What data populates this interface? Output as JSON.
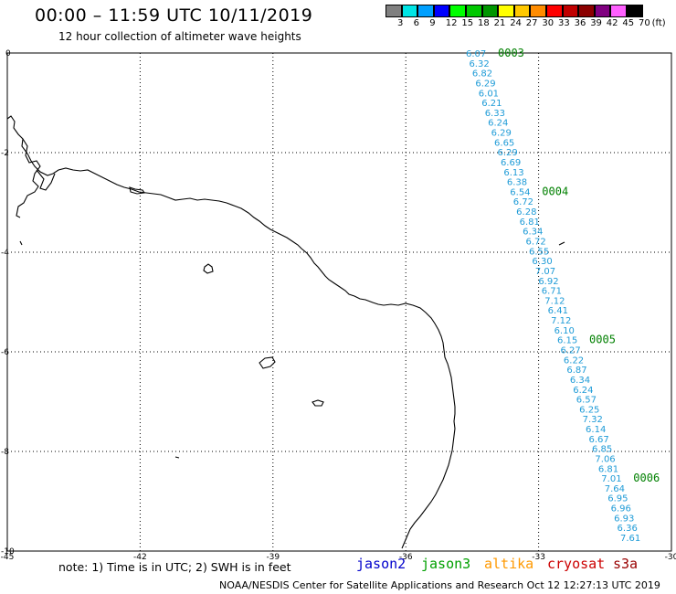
{
  "header": {
    "title": "00:00 – 11:59 UTC 10/11/2019",
    "subtitle": "12 hour collection of altimeter wave heights"
  },
  "legend": {
    "colors": [
      "#808080",
      "#00e5e5",
      "#00a0ff",
      "#0000ff",
      "#00ff00",
      "#00c800",
      "#009600",
      "#ffff00",
      "#ffc800",
      "#ff8c00",
      "#ff0000",
      "#c00000",
      "#8b0000",
      "#800080",
      "#ff60ff",
      "#000000"
    ],
    "labels": [
      "3",
      "6",
      "9",
      "12",
      "15",
      "18",
      "21",
      "24",
      "27",
      "30",
      "33",
      "36",
      "39",
      "42",
      "45",
      "70",
      "(ft)"
    ]
  },
  "map": {
    "x_ticks": [
      "-45",
      "-42",
      "-39",
      "-36",
      "-33",
      "-30"
    ],
    "y_ticks": [
      "0",
      "-2",
      "-4",
      "-6",
      "-8",
      "-10"
    ],
    "pass_labels": [
      "0003",
      "0004",
      "0005",
      "0006"
    ],
    "wave_heights": [
      "6.07",
      "6.32",
      "6.82",
      "6.29",
      "6.01",
      "6.21",
      "6.33",
      "6.24",
      "6.29",
      "6.65",
      "6.29",
      "6.69",
      "6.13",
      "6.38",
      "6.54",
      "6.72",
      "6.28",
      "6.81",
      "6.34",
      "6.72",
      "6.55",
      "6.30",
      "7.07",
      "6.92",
      "6.71",
      "7.12",
      "6.41",
      "7.12",
      "6.10",
      "6.15",
      "6.27",
      "6.22",
      "6.87",
      "6.34",
      "6.24",
      "6.57",
      "6.25",
      "7.32",
      "6.14",
      "6.67",
      "6.85",
      "7.06",
      "6.81",
      "7.01",
      "7.64",
      "6.95",
      "6.96",
      "6.93",
      "6.36",
      "7.61"
    ],
    "track_color": "#1e9bd7",
    "pass_color": "#008000"
  },
  "footer": {
    "note": "note: 1) Time is in UTC; 2) SWH is in feet",
    "satellites": [
      {
        "name": "jason2",
        "color": "#0000cc"
      },
      {
        "name": "jason3",
        "color": "#00a000"
      },
      {
        "name": "altika",
        "color": "#ff9900"
      },
      {
        "name": "cryosat",
        "color": "#cc0000"
      },
      {
        "name": "s3a",
        "color": "#990000"
      }
    ],
    "credit": "NOAA/NESDIS Center for Satellite Applications and Research    Oct 12 12:27:13 UTC 2019"
  }
}
